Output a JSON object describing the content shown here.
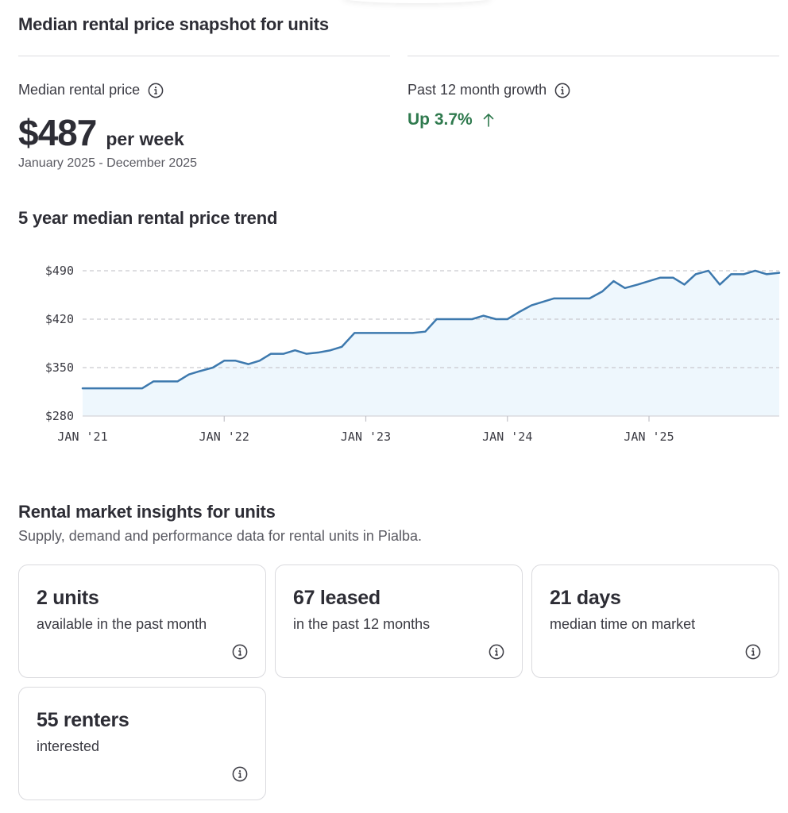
{
  "snapshot": {
    "title": "Median rental price snapshot for units",
    "median_label": "Median rental price",
    "median_value": "$487",
    "median_unit": "per week",
    "period": "January 2025 - December 2025",
    "growth_label": "Past 12 month growth",
    "growth_value": "Up 3.7%",
    "growth_color": "#2f7a4e",
    "growth_icon": "arrow-up-icon",
    "info_icon": "info-icon"
  },
  "trend": {
    "title": "5 year median rental price trend"
  },
  "chart_data": {
    "type": "area",
    "line_color": "#3d79ae",
    "fill_color": "#eef7fd",
    "ylim": [
      280,
      490
    ],
    "yticks": [
      280,
      350,
      420,
      490
    ],
    "ytick_labels": [
      "$280",
      "$350",
      "$420",
      "$490"
    ],
    "xlim": [
      2021.0,
      2025.92
    ],
    "xticks": [
      2021,
      2022,
      2023,
      2024,
      2025
    ],
    "xtick_labels": [
      "JAN '21",
      "JAN '22",
      "JAN '23",
      "JAN '24",
      "JAN '25"
    ],
    "grid": "horizontal-dashed",
    "x": [
      2021.0,
      2021.08,
      2021.17,
      2021.25,
      2021.33,
      2021.42,
      2021.5,
      2021.58,
      2021.67,
      2021.75,
      2021.83,
      2021.92,
      2022.0,
      2022.08,
      2022.17,
      2022.25,
      2022.33,
      2022.42,
      2022.5,
      2022.58,
      2022.67,
      2022.75,
      2022.83,
      2022.92,
      2023.0,
      2023.08,
      2023.17,
      2023.25,
      2023.33,
      2023.42,
      2023.5,
      2023.58,
      2023.67,
      2023.75,
      2023.83,
      2023.92,
      2024.0,
      2024.08,
      2024.17,
      2024.25,
      2024.33,
      2024.42,
      2024.5,
      2024.58,
      2024.67,
      2024.75,
      2024.83,
      2024.92,
      2025.0,
      2025.08,
      2025.17,
      2025.25,
      2025.33,
      2025.42,
      2025.5,
      2025.58,
      2025.67,
      2025.75,
      2025.83,
      2025.92
    ],
    "values": [
      320,
      320,
      320,
      320,
      320,
      320,
      330,
      330,
      330,
      340,
      345,
      350,
      360,
      360,
      355,
      360,
      370,
      370,
      375,
      370,
      372,
      375,
      380,
      400,
      400,
      400,
      400,
      400,
      400,
      402,
      420,
      420,
      420,
      420,
      425,
      420,
      420,
      430,
      440,
      445,
      450,
      450,
      450,
      450,
      460,
      475,
      465,
      470,
      475,
      480,
      480,
      470,
      485,
      490,
      470,
      485,
      485,
      490,
      485,
      487
    ]
  },
  "insights": {
    "title": "Rental market insights for units",
    "subtitle": "Supply, demand and performance data for rental units in Pialba.",
    "cards": [
      {
        "value": "2 units",
        "desc": "available in the past month"
      },
      {
        "value": "67 leased",
        "desc": "in the past 12 months"
      },
      {
        "value": "21 days",
        "desc": "median time on market"
      },
      {
        "value": "55 renters",
        "desc": "interested"
      }
    ]
  }
}
